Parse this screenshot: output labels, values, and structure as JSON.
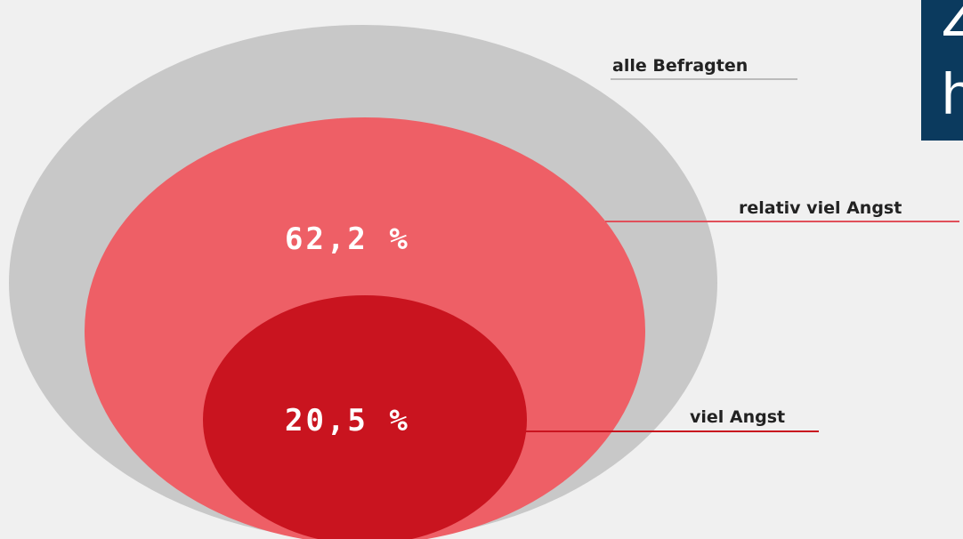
{
  "diagram": {
    "rings": [
      {
        "label": "alle Befragten"
      },
      {
        "label": "relativ viel Angst",
        "value_text": "62,2 %"
      },
      {
        "label": "viel Angst",
        "value_text": "20,5 %"
      }
    ],
    "corner_box": {
      "lines": [
        "Z",
        "h"
      ]
    }
  }
}
